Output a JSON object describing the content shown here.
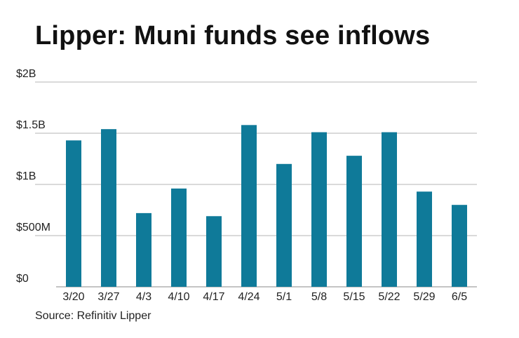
{
  "title": "Lipper: Muni funds see inflows",
  "source": "Source: Refinitiv Lipper",
  "colors": {
    "bar": "#0f7a99",
    "grid": "#b5b5b5",
    "axis": "#888888"
  },
  "chart_data": {
    "type": "bar",
    "title": "Lipper: Muni funds see inflows",
    "xlabel": "",
    "ylabel": "",
    "categories": [
      "3/20",
      "3/27",
      "4/3",
      "4/10",
      "4/17",
      "4/24",
      "5/1",
      "5/8",
      "5/15",
      "5/22",
      "5/29",
      "6/5"
    ],
    "values": [
      1.43,
      1.54,
      0.72,
      0.96,
      0.69,
      1.58,
      1.2,
      1.51,
      1.28,
      1.51,
      0.93,
      0.8
    ],
    "value_unit": "billions of dollars",
    "ylim": [
      0,
      2
    ],
    "yticks": [
      {
        "value": 0,
        "label": "$0"
      },
      {
        "value": 0.5,
        "label": "$500M"
      },
      {
        "value": 1,
        "label": "$1B"
      },
      {
        "value": 1.5,
        "label": "$1.5B"
      },
      {
        "value": 2,
        "label": "$2B"
      }
    ],
    "grid": true,
    "legend": "none"
  }
}
